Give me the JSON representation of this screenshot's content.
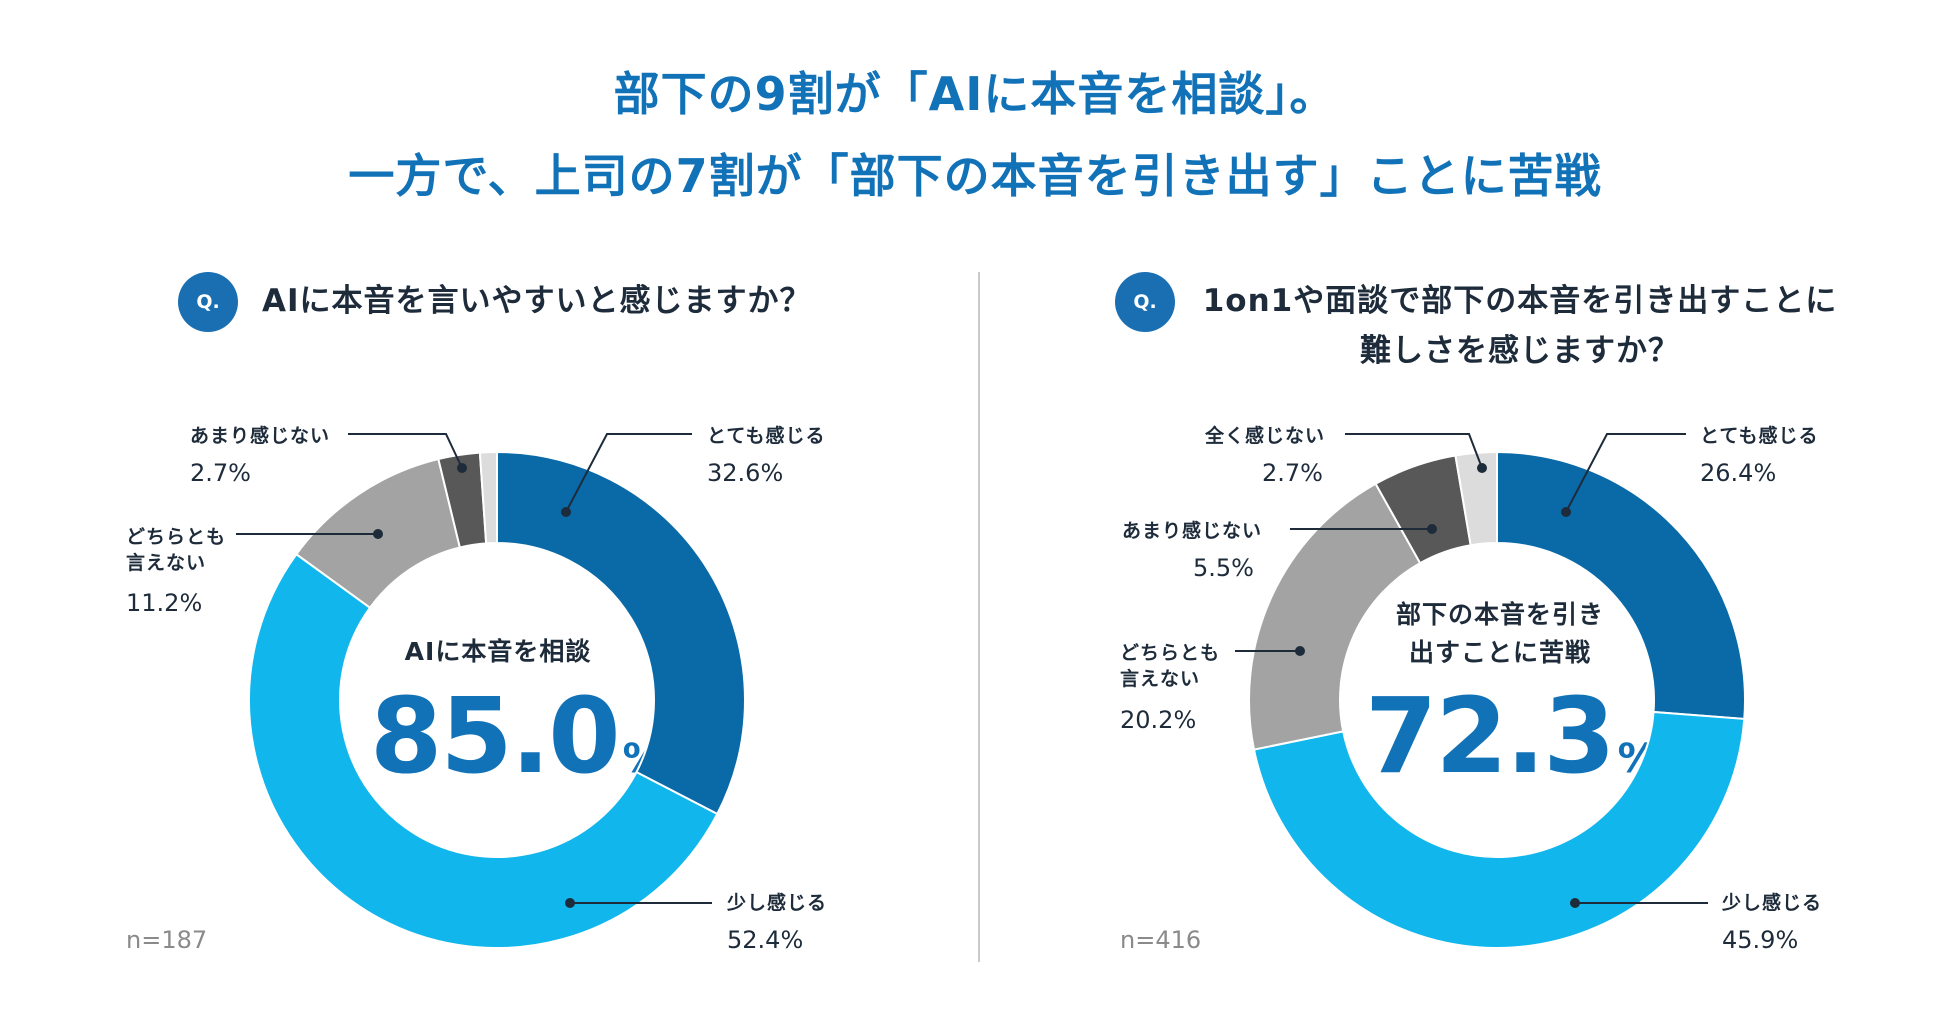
{
  "headline": {
    "line1": "部下の9割が「AIに本音を相談」。",
    "line2": "一方で、上司の7割が「部下の本音を引き出す」ことに苦戦"
  },
  "colors": {
    "brand_blue": "#1272b8",
    "very": "#0a6aa8",
    "slightly": "#10b6ec",
    "neither": "#a3a3a3",
    "not_much": "#585858",
    "not_at_all": "#dcdcdc"
  },
  "chart_data": [
    {
      "type": "pie",
      "question_badge": "Q.",
      "question": "AIに本音を言いやすいと感じますか？",
      "center_caption": "AIに本音を相談",
      "center_value": "85.0",
      "center_unit": "%",
      "n": "n=187",
      "slices": [
        {
          "label": "とても感じる",
          "value": 32.6,
          "display": "32.6%"
        },
        {
          "label": "少し感じる",
          "value": 52.4,
          "display": "52.4%"
        },
        {
          "label": "どちらとも言えない",
          "value": 11.2,
          "display": "11.2%"
        },
        {
          "label": "あまり感じない",
          "value": 2.7,
          "display": "2.7%"
        },
        {
          "label": "",
          "value": 1.1,
          "display": ""
        }
      ]
    },
    {
      "type": "pie",
      "question_badge": "Q.",
      "question": "1on1や面談で部下の本音を引き出すことに難しさを感じますか？",
      "center_caption": "部下の本音を引き出すことに苦戦",
      "center_value": "72.3",
      "center_unit": "%",
      "n": "n=416",
      "slices": [
        {
          "label": "とても感じる",
          "value": 26.4,
          "display": "26.4%"
        },
        {
          "label": "少し感じる",
          "value": 45.9,
          "display": "45.9%"
        },
        {
          "label": "どちらとも言えない",
          "value": 20.2,
          "display": "20.2%"
        },
        {
          "label": "あまり感じない",
          "value": 5.5,
          "display": "5.5%"
        },
        {
          "label": "全く感じない",
          "value": 2.7,
          "display": "2.7%"
        }
      ]
    }
  ]
}
